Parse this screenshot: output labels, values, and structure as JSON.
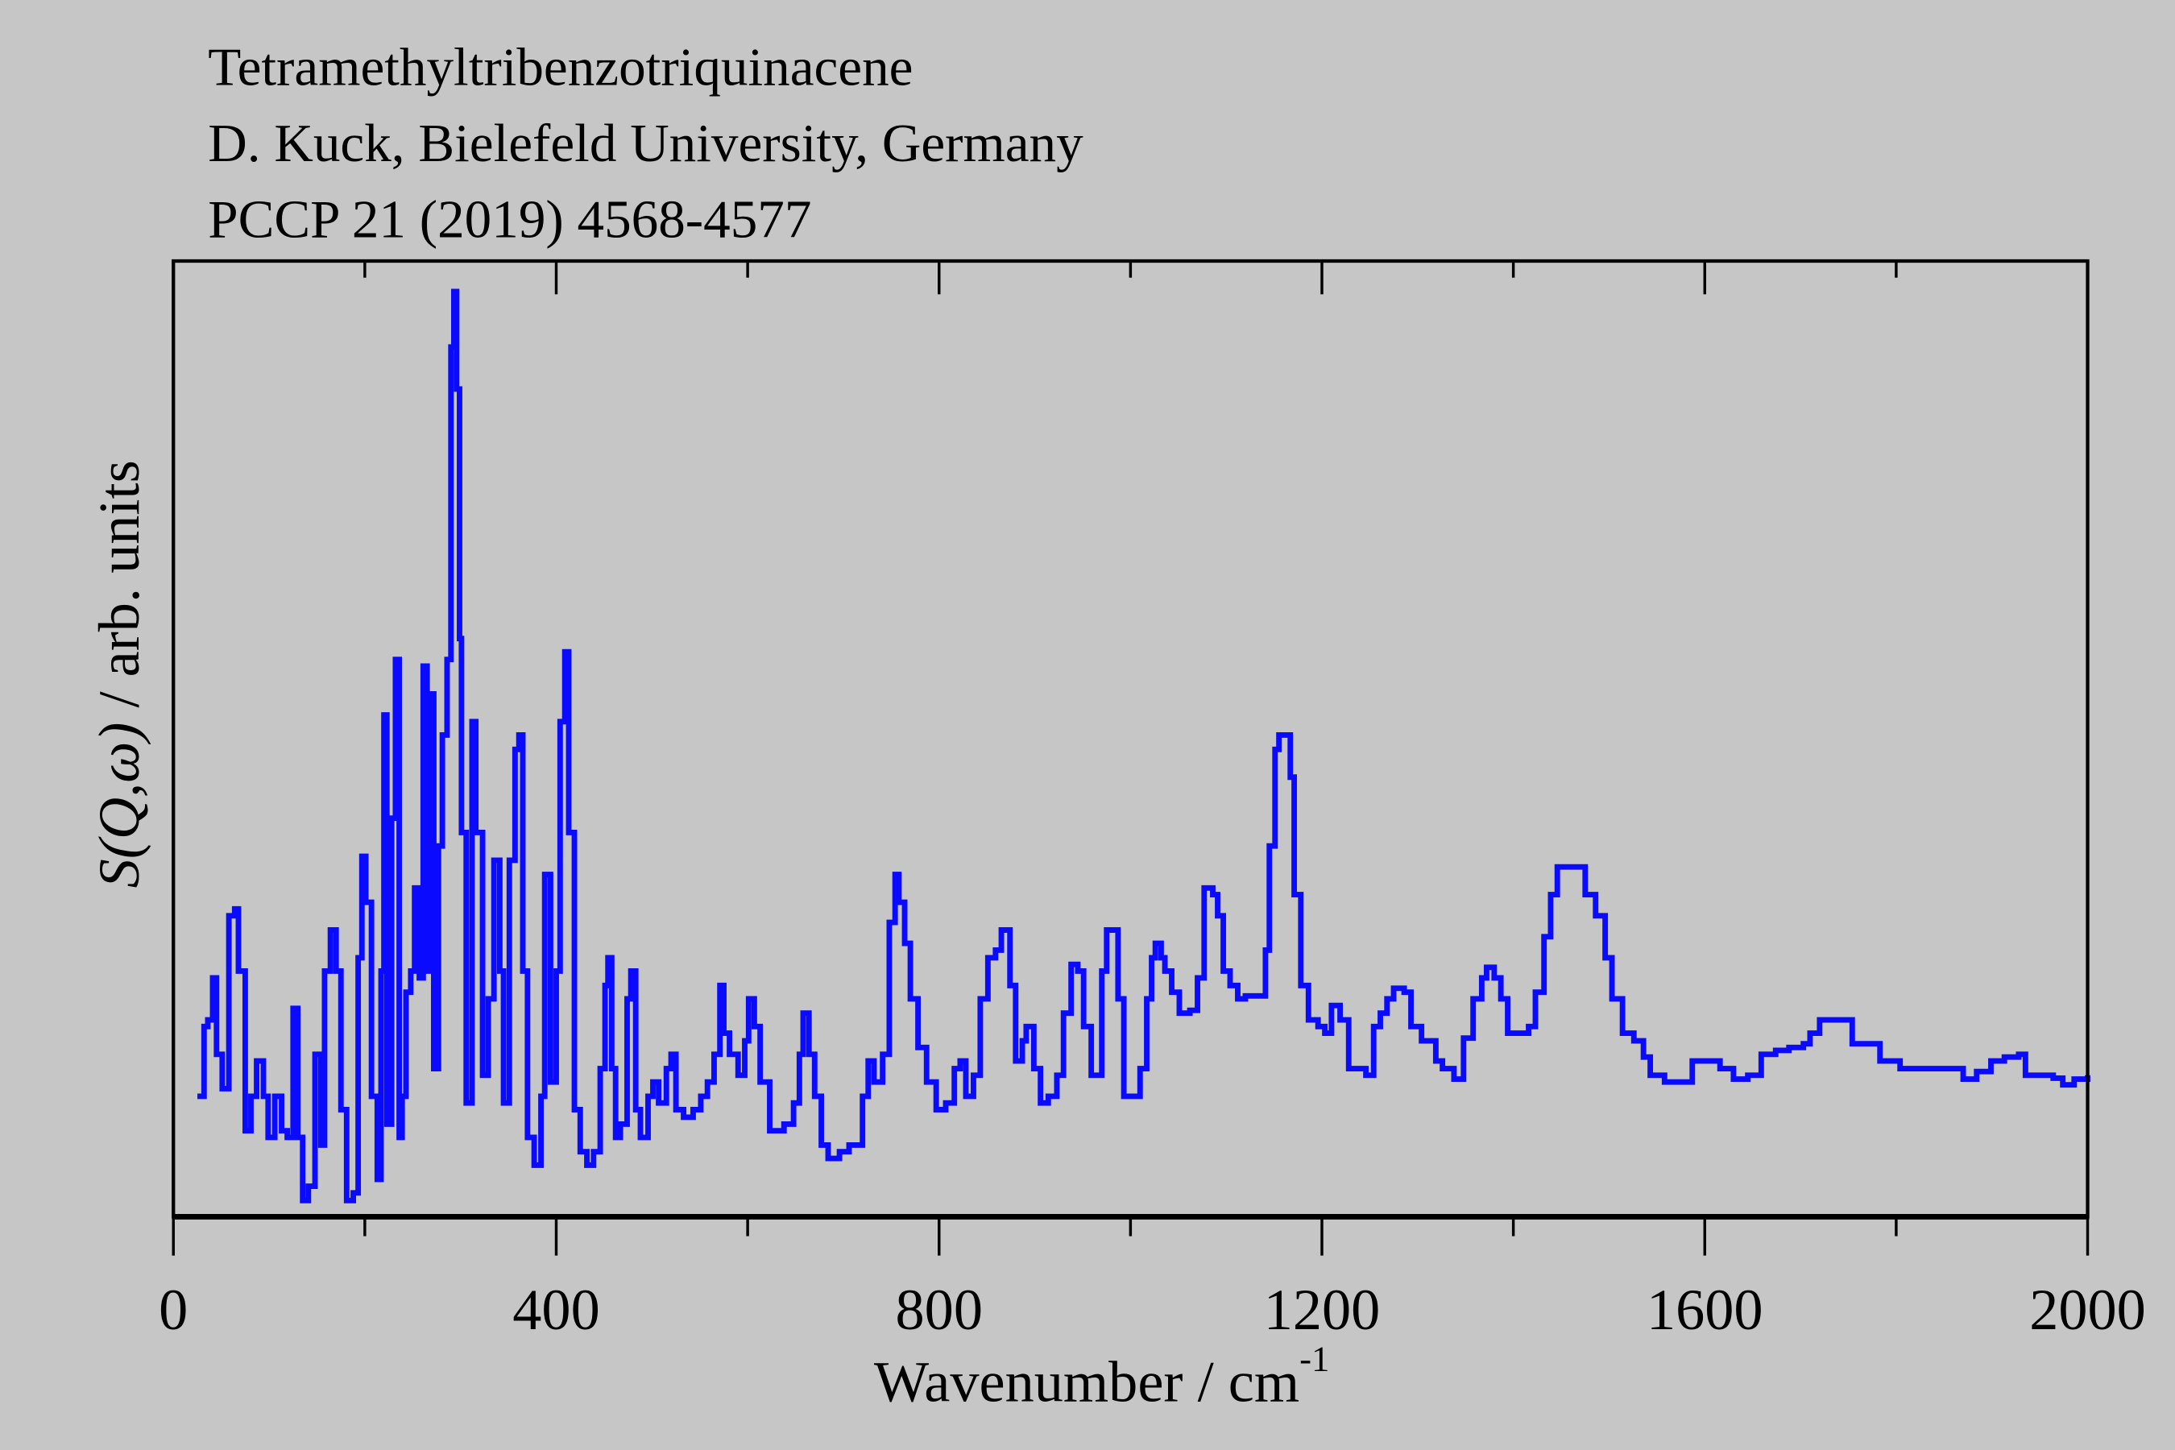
{
  "header": {
    "lines": [
      "Tetramethyltribenzotriquinacene",
      "D. Kuck, Bielefeld University, Germany",
      "PCCP 21 (2019) 4568-4577"
    ]
  },
  "chart_data": {
    "type": "line",
    "title": "Tetramethyltribenzotriquinacene",
    "xlabel": "Wavenumber / cm",
    "xlabel_superscript": "-1",
    "ylabel_italic": "S(Q,ω)",
    "ylabel_rest": " / arb. units",
    "xlim": [
      0,
      2000
    ],
    "ylim": [
      0,
      100
    ],
    "xticks_major": [
      0,
      400,
      800,
      1200,
      1600,
      2000
    ],
    "xticks_minor": [
      200,
      600,
      1000,
      1400,
      1800
    ],
    "yticks": [],
    "grid": false,
    "line_color": "#0a0aff",
    "background": "#c6c6c6",
    "series": [
      {
        "name": "S(Q,ω)",
        "x": [
          25,
          32,
          36,
          41,
          45,
          51,
          58,
          64,
          68,
          75,
          81,
          87,
          94,
          99,
          106,
          113,
          119,
          125,
          130,
          135,
          141,
          148,
          154,
          158,
          164,
          170,
          175,
          181,
          188,
          193,
          197,
          201,
          207,
          213,
          217,
          220,
          223,
          228,
          232,
          236,
          239,
          243,
          248,
          252,
          257,
          261,
          265,
          270,
          272,
          277,
          281,
          286,
          290,
          293,
          296,
          299,
          301,
          306,
          312,
          316,
          323,
          329,
          335,
          341,
          345,
          351,
          357,
          361,
          365,
          370,
          377,
          384,
          388,
          394,
          400,
          404,
          409,
          413,
          419,
          425,
          432,
          439,
          446,
          451,
          454,
          458,
          462,
          467,
          474,
          478,
          483,
          488,
          496,
          501,
          507,
          515,
          520,
          525,
          533,
          543,
          551,
          558,
          565,
          571,
          575,
          581,
          590,
          597,
          601,
          607,
          613,
          623,
          638,
          648,
          654,
          658,
          664,
          670,
          677,
          684,
          696,
          706,
          713,
          720,
          726,
          732,
          741,
          748,
          754,
          758,
          764,
          770,
          778,
          787,
          797,
          807,
          816,
          822,
          828,
          836,
          843,
          851,
          859,
          865,
          874,
          880,
          887,
          891,
          899,
          906,
          914,
          923,
          930,
          938,
          945,
          951,
          959,
          965,
          970,
          975,
          983,
          987,
          993,
          1004,
          1010,
          1017,
          1022,
          1026,
          1032,
          1036,
          1043,
          1051,
          1062,
          1070,
          1077,
          1086,
          1091,
          1097,
          1104,
          1112,
          1120,
          1130,
          1141,
          1145,
          1151,
          1155,
          1161,
          1167,
          1171,
          1178,
          1186,
          1196,
          1203,
          1210,
          1219,
          1228,
          1246,
          1254,
          1261,
          1268,
          1275,
          1286,
          1293,
          1304,
          1319,
          1326,
          1338,
          1348,
          1358,
          1367,
          1372,
          1380,
          1387,
          1394,
          1406,
          1416,
          1423,
          1432,
          1439,
          1446,
          1457,
          1467,
          1475,
          1486,
          1496,
          1503,
          1514,
          1526,
          1536,
          1543,
          1558,
          1580,
          1587,
          1601,
          1616,
          1630,
          1645,
          1659,
          1674,
          1688,
          1703,
          1710,
          1720,
          1735,
          1746,
          1754,
          1767,
          1783,
          1804,
          1826,
          1848,
          1862,
          1870,
          1884,
          1899,
          1913,
          1928,
          1935,
          1964,
          1974,
          1986,
          2000
        ],
        "y": [
          12.6,
          19.9,
          20.6,
          25.0,
          17.0,
          13.4,
          31.5,
          32.2,
          25.7,
          9.0,
          12.6,
          16.3,
          12.6,
          8.3,
          12.6,
          9.0,
          8.3,
          21.8,
          8.3,
          1.7,
          3.2,
          17.0,
          7.5,
          25.7,
          30.0,
          25.7,
          11.2,
          1.7,
          2.5,
          27.1,
          37.7,
          32.9,
          12.6,
          3.9,
          25.7,
          52.5,
          9.7,
          41.7,
          58.3,
          8.3,
          12.6,
          23.5,
          25.7,
          34.4,
          25.0,
          57.6,
          25.7,
          54.7,
          15.5,
          38.8,
          50.4,
          58.3,
          91.0,
          96.8,
          86.6,
          60.5,
          40.2,
          11.9,
          51.8,
          40.2,
          14.8,
          22.8,
          37.3,
          25.7,
          11.9,
          37.3,
          48.9,
          50.4,
          25.7,
          8.3,
          5.4,
          12.6,
          35.8,
          14.1,
          25.7,
          51.8,
          59.1,
          40.2,
          11.2,
          6.8,
          5.4,
          6.8,
          15.5,
          24.2,
          27.1,
          15.5,
          8.3,
          9.7,
          22.8,
          25.7,
          11.2,
          8.3,
          12.6,
          14.1,
          11.9,
          15.5,
          17.0,
          11.2,
          10.4,
          11.2,
          12.6,
          14.1,
          17.0,
          24.2,
          19.2,
          17.0,
          14.8,
          18.4,
          22.8,
          19.9,
          14.1,
          9.0,
          9.7,
          11.9,
          17.0,
          21.3,
          17.0,
          12.6,
          7.5,
          6.1,
          6.8,
          7.5,
          7.5,
          12.6,
          16.3,
          14.1,
          17.0,
          30.8,
          35.8,
          32.9,
          28.6,
          22.8,
          17.7,
          14.1,
          11.2,
          11.9,
          15.5,
          16.3,
          12.6,
          14.8,
          22.8,
          27.1,
          27.9,
          30.0,
          24.2,
          16.3,
          18.4,
          19.9,
          15.5,
          11.9,
          12.6,
          14.8,
          21.3,
          26.4,
          25.7,
          19.9,
          14.8,
          14.8,
          25.7,
          30.0,
          30.0,
          22.8,
          12.6,
          12.6,
          15.5,
          22.8,
          27.1,
          28.6,
          27.1,
          25.7,
          23.5,
          21.3,
          21.6,
          25.0,
          34.4,
          33.7,
          31.5,
          25.7,
          24.2,
          22.8,
          23.1,
          23.1,
          27.9,
          38.8,
          48.9,
          50.4,
          50.4,
          46.0,
          33.7,
          24.2,
          20.6,
          19.9,
          19.2,
          22.1,
          20.6,
          15.5,
          14.8,
          19.9,
          21.3,
          22.8,
          23.9,
          23.5,
          19.9,
          18.4,
          16.3,
          15.5,
          14.4,
          18.7,
          22.8,
          25.0,
          26.1,
          25.0,
          22.8,
          19.2,
          19.2,
          19.9,
          23.5,
          29.3,
          33.7,
          36.6,
          36.6,
          36.6,
          33.7,
          31.5,
          27.1,
          22.8,
          19.2,
          18.4,
          16.7,
          14.8,
          14.1,
          14.1,
          16.3,
          16.3,
          15.5,
          14.4,
          14.8,
          17.0,
          17.4,
          17.7,
          18.1,
          19.2,
          20.6,
          20.6,
          20.6,
          18.1,
          18.1,
          16.3,
          15.5,
          15.5,
          15.5,
          15.5,
          14.4,
          15.2,
          16.3,
          16.7,
          17.0,
          14.8,
          14.5,
          13.8,
          14.4,
          14.8
        ]
      }
    ]
  }
}
